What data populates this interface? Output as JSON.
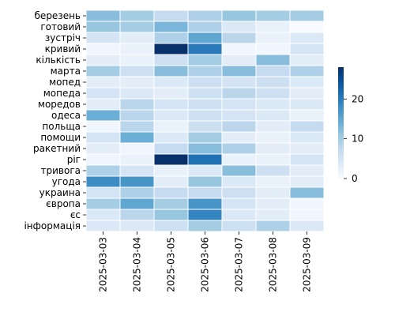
{
  "chart_data": {
    "type": "heatmap",
    "title": "",
    "xlabel": "",
    "ylabel": "",
    "rows": [
      "березень",
      "готовий",
      "зустріч",
      "кривий",
      "кількість",
      "марта",
      "мопед",
      "мопеда",
      "моредов",
      "одеса",
      "польща",
      "помощи",
      "ракетний",
      "ріг",
      "тривога",
      "угода",
      "украина",
      "європа",
      "єс",
      "інформація"
    ],
    "columns": [
      "2025-03-03",
      "2025-03-04",
      "2025-03-05",
      "2025-03-06",
      "2025-03-07",
      "2025-03-08",
      "2025-03-09"
    ],
    "values": [
      [
        12,
        10,
        7,
        9,
        11,
        10,
        10
      ],
      [
        11,
        10,
        13,
        9,
        4,
        2,
        0
      ],
      [
        5,
        3,
        9,
        15,
        8,
        2,
        4
      ],
      [
        1,
        2,
        28,
        20,
        1,
        1,
        5
      ],
      [
        3,
        2,
        6,
        10,
        3,
        12,
        3
      ],
      [
        10,
        6,
        12,
        9,
        12,
        7,
        9
      ],
      [
        3,
        3,
        4,
        6,
        5,
        6,
        4
      ],
      [
        5,
        4,
        3,
        6,
        8,
        6,
        3
      ],
      [
        3,
        8,
        5,
        6,
        5,
        4,
        4
      ],
      [
        14,
        8,
        4,
        6,
        5,
        4,
        2
      ],
      [
        1,
        8,
        2,
        6,
        8,
        3,
        7
      ],
      [
        5,
        14,
        4,
        10,
        3,
        2,
        4
      ],
      [
        3,
        1,
        7,
        12,
        9,
        3,
        3
      ],
      [
        1,
        2,
        28,
        21,
        2,
        2,
        5
      ],
      [
        9,
        5,
        2,
        4,
        12,
        6,
        3
      ],
      [
        18,
        17,
        3,
        11,
        4,
        2,
        3
      ],
      [
        5,
        9,
        7,
        7,
        6,
        3,
        12
      ],
      [
        10,
        15,
        10,
        17,
        5,
        3,
        1
      ],
      [
        4,
        8,
        11,
        19,
        4,
        3,
        1
      ],
      [
        4,
        4,
        6,
        10,
        6,
        9,
        4
      ]
    ],
    "colorbar": {
      "min": 0,
      "max": 28,
      "ticks": [
        0,
        10,
        20
      ]
    },
    "colormap": [
      "#f7fbff",
      "#deebf7",
      "#c6dbef",
      "#9ecae1",
      "#6baed6",
      "#4292c6",
      "#2171b5",
      "#08519c",
      "#08306b"
    ]
  }
}
